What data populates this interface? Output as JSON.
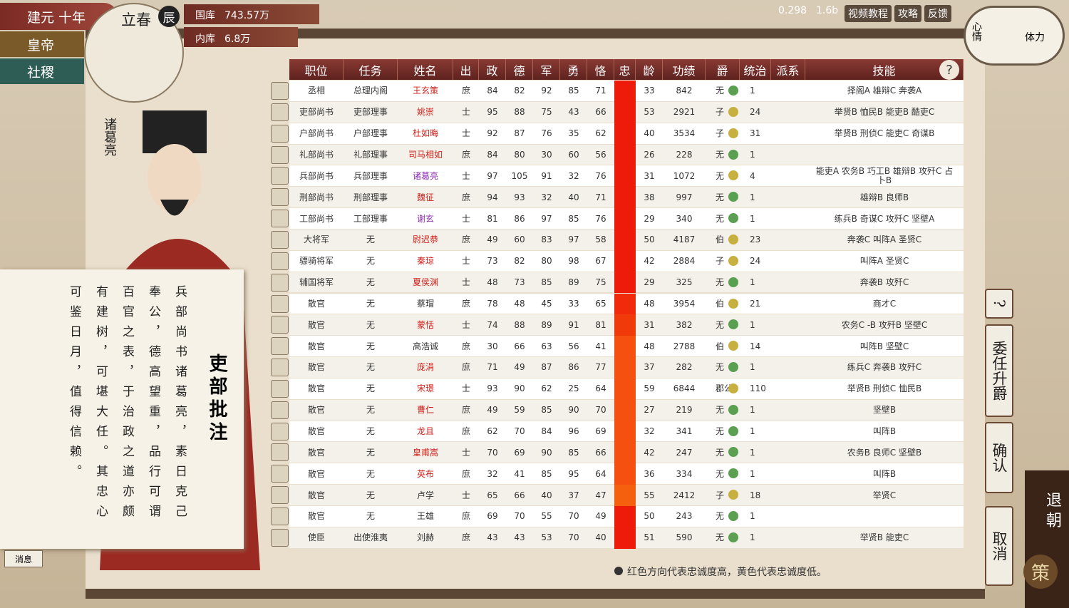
{
  "header": {
    "era": "建元 十年",
    "season": "立春",
    "hour": "辰",
    "treasury_label": "国库",
    "treasury": "743.57万",
    "privy_label": "内库",
    "privy": "6.8万",
    "version": "0.298",
    "build": "1.6b",
    "links": [
      "视频教程",
      "攻略",
      "反馈"
    ],
    "mood": "心情",
    "stamina": "体力"
  },
  "left_menu": [
    "皇帝",
    "社稷"
  ],
  "portrait": {
    "name": "诸葛亮"
  },
  "memo": {
    "title": "吏部批注",
    "columns": [
      "兵部尚书诸葛亮，素日克己",
      "奉公，德高望重，品行可谓",
      "百官之表，于治政之道亦颇",
      "有建树，可堪大任。其忠心",
      "可鉴日月，值得信赖。"
    ]
  },
  "message_button": "消息",
  "table": {
    "headers": [
      "职位",
      "任务",
      "姓名",
      "出",
      "政",
      "德",
      "军",
      "勇",
      "恪",
      "忠",
      "龄",
      "功绩",
      "爵",
      "统治",
      "派系",
      "技能"
    ],
    "help": "?",
    "rows": [
      {
        "position": "丞相",
        "task": "总理内阁",
        "name": "王玄策",
        "name_color": "#d0201a",
        "origin": "庶",
        "stats": [
          84,
          82,
          92,
          85,
          71
        ],
        "loyalty_color": "#ee1a0a",
        "age": 33,
        "merit": 842,
        "rank": "无",
        "rule": 1,
        "skills": "择阁A 雄辩C 奔袭A"
      },
      {
        "position": "吏部尚书",
        "task": "吏部理事",
        "name": "姚崇",
        "name_color": "#d0201a",
        "origin": "士",
        "stats": [
          95,
          88,
          75,
          43,
          66
        ],
        "loyalty_color": "#ee1a0a",
        "age": 53,
        "merit": 2921,
        "rank": "子",
        "rule": 24,
        "skills": "举贤B 恤民B 能吏B 酷吏C"
      },
      {
        "position": "户部尚书",
        "task": "户部理事",
        "name": "杜如晦",
        "name_color": "#d0201a",
        "origin": "士",
        "stats": [
          92,
          87,
          76,
          35,
          62
        ],
        "loyalty_color": "#ee1a0a",
        "age": 40,
        "merit": 3534,
        "rank": "子",
        "rule": 31,
        "skills": "举贤B 刑侦C 能吏C 奇谋B"
      },
      {
        "position": "礼部尚书",
        "task": "礼部理事",
        "name": "司马相如",
        "name_color": "#d0201a",
        "origin": "庶",
        "stats": [
          84,
          80,
          30,
          60,
          56
        ],
        "loyalty_color": "#ee1a0a",
        "age": 26,
        "merit": 228,
        "rank": "无",
        "rule": 1,
        "skills": ""
      },
      {
        "position": "兵部尚书",
        "task": "兵部理事",
        "name": "诸葛亮",
        "name_color": "#8a2cb0",
        "origin": "士",
        "stats": [
          97,
          105,
          91,
          32,
          76
        ],
        "loyalty_color": "#ee1a0a",
        "age": 31,
        "merit": 1072,
        "rank": "无",
        "rule": 4,
        "skills": "能吏A 农务B 巧工B 雄辩B 攻歼C 占卜B"
      },
      {
        "position": "刑部尚书",
        "task": "刑部理事",
        "name": "魏征",
        "name_color": "#d0201a",
        "origin": "庶",
        "stats": [
          94,
          93,
          32,
          40,
          71
        ],
        "loyalty_color": "#ee1a0a",
        "age": 38,
        "merit": 997,
        "rank": "无",
        "rule": 1,
        "skills": "雄辩B 良师B"
      },
      {
        "position": "工部尚书",
        "task": "工部理事",
        "name": "谢玄",
        "name_color": "#8a2cb0",
        "origin": "士",
        "stats": [
          81,
          86,
          97,
          85,
          76
        ],
        "loyalty_color": "#ee1a0a",
        "age": 29,
        "merit": 340,
        "rank": "无",
        "rule": 1,
        "skills": "练兵B 奇谋C 攻歼C 坚壁A"
      },
      {
        "position": "大将军",
        "task": "无",
        "name": "尉迟恭",
        "name_color": "#d0201a",
        "origin": "庶",
        "stats": [
          49,
          60,
          83,
          97,
          58
        ],
        "loyalty_color": "#ee1a0a",
        "age": 50,
        "merit": 4187,
        "rank": "伯",
        "rule": 23,
        "skills": "奔袭C 叫阵A 圣贤C"
      },
      {
        "position": "骠骑将军",
        "task": "无",
        "name": "秦琼",
        "name_color": "#d0201a",
        "origin": "士",
        "stats": [
          73,
          82,
          80,
          98,
          67
        ],
        "loyalty_color": "#ee1a0a",
        "age": 42,
        "merit": 2884,
        "rank": "子",
        "rule": 24,
        "skills": "叫阵A 圣贤C"
      },
      {
        "position": "辅国将军",
        "task": "无",
        "name": "夏侯渊",
        "name_color": "#d0201a",
        "origin": "士",
        "stats": [
          48,
          73,
          85,
          89,
          75
        ],
        "loyalty_color": "#ee1a0a",
        "age": 29,
        "merit": 325,
        "rank": "无",
        "rule": 1,
        "skills": "奔袭B 攻歼C"
      },
      {
        "position": "散官",
        "task": "无",
        "name": "蔡瑁",
        "name_color": "#333333",
        "origin": "庶",
        "stats": [
          78,
          48,
          45,
          33,
          65
        ],
        "loyalty_color": "#f02a0a",
        "age": 48,
        "merit": 3954,
        "rank": "伯",
        "rule": 21,
        "skills": "商才C"
      },
      {
        "position": "散官",
        "task": "无",
        "name": "蒙恬",
        "name_color": "#d0201a",
        "origin": "士",
        "stats": [
          74,
          88,
          89,
          91,
          81
        ],
        "loyalty_color": "#f03a0a",
        "age": 31,
        "merit": 382,
        "rank": "无",
        "rule": 1,
        "skills": "农务C -B 攻歼B 坚壁C"
      },
      {
        "position": "散官",
        "task": "无",
        "name": "高浩诚",
        "name_color": "#333333",
        "origin": "庶",
        "stats": [
          30,
          66,
          63,
          56,
          41
        ],
        "loyalty_color": "#f5500f",
        "age": 48,
        "merit": 2788,
        "rank": "伯",
        "rule": 14,
        "skills": "叫阵B 坚壁C"
      },
      {
        "position": "散官",
        "task": "无",
        "name": "庞涓",
        "name_color": "#d0201a",
        "origin": "庶",
        "stats": [
          71,
          49,
          87,
          86,
          77
        ],
        "loyalty_color": "#f5500f",
        "age": 37,
        "merit": 282,
        "rank": "无",
        "rule": 1,
        "skills": "练兵C 奔袭B 攻歼C"
      },
      {
        "position": "散官",
        "task": "无",
        "name": "宋璟",
        "name_color": "#d0201a",
        "origin": "士",
        "stats": [
          93,
          90,
          62,
          25,
          64
        ],
        "loyalty_color": "#f5500f",
        "age": 59,
        "merit": 6844,
        "rank": "郡公",
        "rule": 110,
        "skills": "举贤B 刑侦C 恤民B"
      },
      {
        "position": "散官",
        "task": "无",
        "name": "曹仁",
        "name_color": "#d0201a",
        "origin": "庶",
        "stats": [
          49,
          59,
          85,
          90,
          70
        ],
        "loyalty_color": "#f5500f",
        "age": 27,
        "merit": 219,
        "rank": "无",
        "rule": 1,
        "skills": "坚壁B"
      },
      {
        "position": "散官",
        "task": "无",
        "name": "龙且",
        "name_color": "#d0201a",
        "origin": "庶",
        "stats": [
          62,
          70,
          84,
          96,
          69
        ],
        "loyalty_color": "#f5500f",
        "age": 32,
        "merit": 341,
        "rank": "无",
        "rule": 1,
        "skills": "叫阵B"
      },
      {
        "position": "散官",
        "task": "无",
        "name": "皇甫嵩",
        "name_color": "#d0201a",
        "origin": "士",
        "stats": [
          70,
          69,
          90,
          85,
          66
        ],
        "loyalty_color": "#f5500f",
        "age": 42,
        "merit": 247,
        "rank": "无",
        "rule": 1,
        "skills": "农务B 良师C 坚壁B"
      },
      {
        "position": "散官",
        "task": "无",
        "name": "英布",
        "name_color": "#d0201a",
        "origin": "庶",
        "stats": [
          32,
          41,
          85,
          95,
          64
        ],
        "loyalty_color": "#f5500f",
        "age": 36,
        "merit": 334,
        "rank": "无",
        "rule": 1,
        "skills": "叫阵B"
      },
      {
        "position": "散官",
        "task": "无",
        "name": "卢学",
        "name_color": "#333333",
        "origin": "士",
        "stats": [
          65,
          66,
          40,
          37,
          47
        ],
        "loyalty_color": "#f5600f",
        "age": 55,
        "merit": 2412,
        "rank": "子",
        "rule": 18,
        "skills": "举贤C"
      },
      {
        "position": "散官",
        "task": "无",
        "name": "王雄",
        "name_color": "#333333",
        "origin": "庶",
        "stats": [
          69,
          70,
          55,
          70,
          49
        ],
        "loyalty_color": "#ee1a0a",
        "age": 50,
        "merit": 243,
        "rank": "无",
        "rule": 1,
        "skills": ""
      },
      {
        "position": "使臣",
        "task": "出使淮夷",
        "name": "刘赫",
        "name_color": "#333333",
        "origin": "庶",
        "stats": [
          43,
          43,
          53,
          70,
          40
        ],
        "loyalty_color": "#ee1a0a",
        "age": 51,
        "merit": 590,
        "rank": "无",
        "rule": 1,
        "skills": "举贤B 能吏C"
      }
    ],
    "legend_note": "红色方向代表忠诚度高，黄色代表忠诚度低。"
  },
  "side_buttons": {
    "help": "?",
    "appoint": "委任升爵",
    "confirm": "确认",
    "cancel": "取消",
    "leave": "退朝",
    "strategy": "策"
  }
}
